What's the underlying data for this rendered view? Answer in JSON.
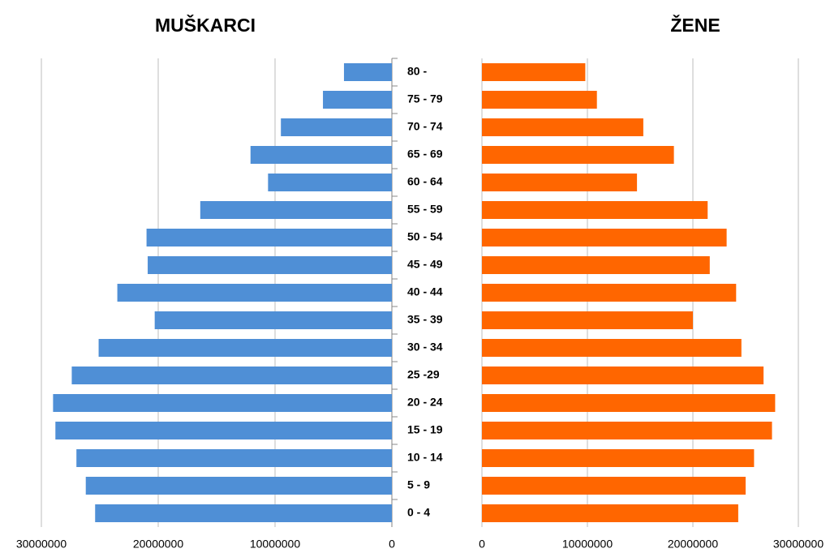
{
  "chart_data": [
    {
      "type": "bar",
      "orientation": "horizontal",
      "title": "MUŠKARCI",
      "categories": [
        "80 -",
        "75 - 79",
        "70 - 74",
        "65 - 69",
        "60 - 64",
        "55 - 59",
        "50 - 54",
        "45 - 49",
        "40 - 44",
        "35 - 39",
        "30 - 34",
        "25 -29",
        "20 - 24",
        "15 - 19",
        "10 - 14",
        "5 - 9",
        "0 - 4"
      ],
      "values": [
        4100000,
        5900000,
        9500000,
        12100000,
        10600000,
        16400000,
        21000000,
        20900000,
        23500000,
        20300000,
        25100000,
        27400000,
        29000000,
        28800000,
        27000000,
        26200000,
        25400000
      ],
      "color": "#4f8fd6",
      "xlim": [
        30000000,
        0
      ],
      "xticks": [
        30000000,
        20000000,
        10000000,
        0
      ],
      "grid": true
    },
    {
      "type": "bar",
      "orientation": "horizontal",
      "title": "ŽENE",
      "values": [
        9800000,
        10900000,
        15300000,
        18200000,
        14700000,
        21400000,
        23200000,
        21600000,
        24100000,
        20000000,
        24600000,
        26700000,
        27800000,
        27500000,
        25800000,
        25000000,
        24300000
      ],
      "color": "#ff6600",
      "xlim": [
        0,
        30000000
      ],
      "xticks": [
        0,
        10000000,
        20000000,
        30000000
      ],
      "grid": true
    }
  ]
}
